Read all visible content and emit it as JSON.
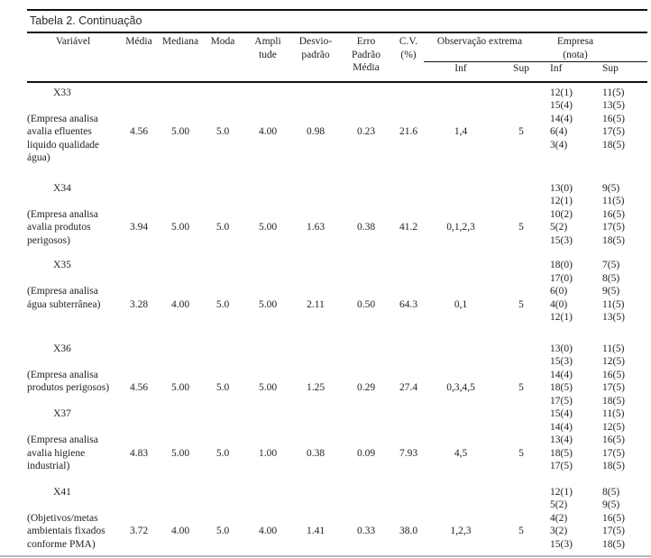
{
  "title": "Tabela 2. Continuação",
  "table": {
    "headers": {
      "variavel": "Variável",
      "media": "Média",
      "mediana": "Mediana",
      "moda": "Moda",
      "amplitude": "Ampli\ntude",
      "desvio": "Desvio-\npadrão",
      "erro": "Erro\nPadrão\nMédia",
      "cv": "C.V.\n(%)",
      "obs_group": "Observação extrema",
      "emp_group": "Empresa\n(nota)",
      "obs_inf": "Inf",
      "obs_sup": "Sup",
      "emp_inf": "Inf",
      "emp_sup": "Sup"
    },
    "blocks": [
      {
        "code": "X33",
        "desc": "(Empresa analisa\navalia efluentes\nliquido qualidade\nágua)",
        "media": "4.56",
        "mediana": "5.00",
        "moda": "5.0",
        "amplitude": "4.00",
        "desvio": "0.98",
        "erro": "0.23",
        "cv": "21.6",
        "obs_inf": "1,4",
        "obs_sup": "5",
        "emp_inf": [
          "12(1)",
          "15(4)",
          "14(4)",
          "6(4)",
          "3(4)"
        ],
        "emp_sup": [
          "11(5)",
          "13(5)",
          "16(5)",
          "17(5)",
          "18(5)"
        ]
      },
      {
        "code": "X34",
        "desc": "(Empresa analisa\navalia produtos\nperigosos)",
        "media": "3.94",
        "mediana": "5.00",
        "moda": "5.0",
        "amplitude": "5.00",
        "desvio": "1.63",
        "erro": "0.38",
        "cv": "41.2",
        "obs_inf": "0,1,2,3",
        "obs_sup": "5",
        "emp_inf": [
          "13(0)",
          "12(1)",
          "10(2)",
          "5(2)",
          "15(3)"
        ],
        "emp_sup": [
          "9(5)",
          "11(5)",
          "16(5)",
          "17(5)",
          "18(5)"
        ]
      },
      {
        "code": "X35",
        "desc": "(Empresa analisa\nágua subterrânea)",
        "media": "3.28",
        "mediana": "4.00",
        "moda": "5.0",
        "amplitude": "5.00",
        "desvio": "2.11",
        "erro": "0.50",
        "cv": "64.3",
        "obs_inf": "0,1",
        "obs_sup": "5",
        "emp_inf": [
          "18(0)",
          "17(0)",
          "6(0)",
          "4(0)",
          "12(1)"
        ],
        "emp_sup": [
          "7(5)",
          "8(5)",
          "9(5)",
          "11(5)",
          "13(5)"
        ]
      },
      {
        "code": "X36",
        "desc": "(Empresa analisa\nprodutos perigosos)",
        "media": "4.56",
        "mediana": "5.00",
        "moda": "5.0",
        "amplitude": "5.00",
        "desvio": "1.25",
        "erro": "0.29",
        "cv": "27.4",
        "obs_inf": "0,3,4,5",
        "obs_sup": "5",
        "emp_inf": [
          "13(0)",
          "15(3)",
          "14(4)",
          "18(5)",
          "17(5)"
        ],
        "emp_sup": [
          "11(5)",
          "12(5)",
          "16(5)",
          "17(5)",
          "18(5)"
        ]
      },
      {
        "code": "X37",
        "desc": "(Empresa analisa\navalia higiene\nindustrial)",
        "media": "4.83",
        "mediana": "5.00",
        "moda": "5.0",
        "amplitude": "1.00",
        "desvio": "0.38",
        "erro": "0.09",
        "cv": "7.93",
        "obs_inf": "4,5",
        "obs_sup": "5",
        "emp_inf": [
          "15(4)",
          "14(4)",
          "13(4)",
          "18(5)",
          "17(5)"
        ],
        "emp_sup": [
          "11(5)",
          "12(5)",
          "16(5)",
          "17(5)",
          "18(5)"
        ]
      },
      {
        "code": "X41",
        "desc": "(Objetivos/metas\nambientais fixados\nconforme PMA)",
        "media": "3.72",
        "mediana": "4.00",
        "moda": "5.0",
        "amplitude": "4.00",
        "desvio": "1.41",
        "erro": "0.33",
        "cv": "38.0",
        "obs_inf": "1,2,3",
        "obs_sup": "5",
        "emp_inf": [
          "12(1)",
          "5(2)",
          "4(2)",
          "3(2)",
          "15(3)"
        ],
        "emp_sup": [
          "8(5)",
          "9(5)",
          "16(5)",
          "17(5)",
          "18(5)"
        ]
      }
    ]
  }
}
